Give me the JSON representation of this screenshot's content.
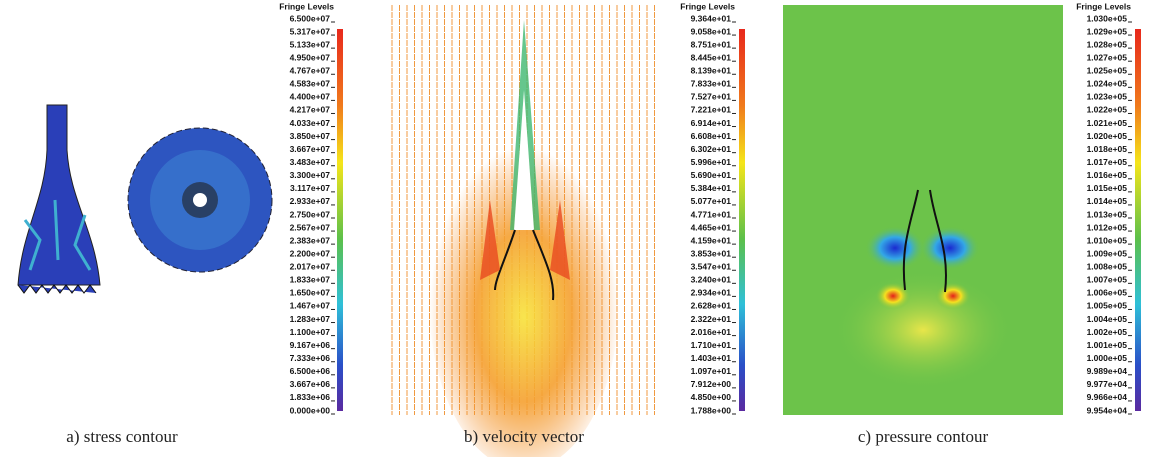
{
  "panels": [
    {
      "legend_title": "Fringe Levels",
      "caption": "a) stress contour",
      "levels": [
        "6.500e+07",
        "5.317e+07",
        "5.133e+07",
        "4.950e+07",
        "4.767e+07",
        "4.583e+07",
        "4.400e+07",
        "4.217e+07",
        "4.033e+07",
        "3.850e+07",
        "3.667e+07",
        "3.483e+07",
        "3.300e+07",
        "3.117e+07",
        "2.933e+07",
        "2.750e+07",
        "2.567e+07",
        "2.383e+07",
        "2.200e+07",
        "2.017e+07",
        "1.833e+07",
        "1.650e+07",
        "1.467e+07",
        "1.283e+07",
        "1.100e+07",
        "9.167e+06",
        "7.333e+06",
        "6.500e+06",
        "3.667e+06",
        "1.833e+06",
        "0.000e+00"
      ]
    },
    {
      "legend_title": "Fringe Levels",
      "caption": "b) velocity vector",
      "levels": [
        "9.364e+01",
        "9.058e+01",
        "8.751e+01",
        "8.445e+01",
        "8.139e+01",
        "7.833e+01",
        "7.527e+01",
        "7.221e+01",
        "6.914e+01",
        "6.608e+01",
        "6.302e+01",
        "5.996e+01",
        "5.690e+01",
        "5.384e+01",
        "5.077e+01",
        "4.771e+01",
        "4.465e+01",
        "4.159e+01",
        "3.853e+01",
        "3.547e+01",
        "3.240e+01",
        "2.934e+01",
        "2.628e+01",
        "2.322e+01",
        "2.016e+01",
        "1.710e+01",
        "1.403e+01",
        "1.097e+01",
        "7.912e+00",
        "4.850e+00",
        "1.788e+00"
      ]
    },
    {
      "legend_title": "Fringe Levels",
      "caption": "c) pressure contour",
      "levels": [
        "1.030e+05",
        "1.029e+05",
        "1.028e+05",
        "1.027e+05",
        "1.025e+05",
        "1.024e+05",
        "1.023e+05",
        "1.022e+05",
        "1.021e+05",
        "1.020e+05",
        "1.018e+05",
        "1.017e+05",
        "1.016e+05",
        "1.015e+05",
        "1.014e+05",
        "1.013e+05",
        "1.012e+05",
        "1.010e+05",
        "1.009e+05",
        "1.008e+05",
        "1.007e+05",
        "1.006e+05",
        "1.005e+05",
        "1.004e+05",
        "1.002e+05",
        "1.001e+05",
        "1.000e+05",
        "9.989e+04",
        "9.977e+04",
        "9.966e+04",
        "9.954e+04"
      ]
    }
  ]
}
